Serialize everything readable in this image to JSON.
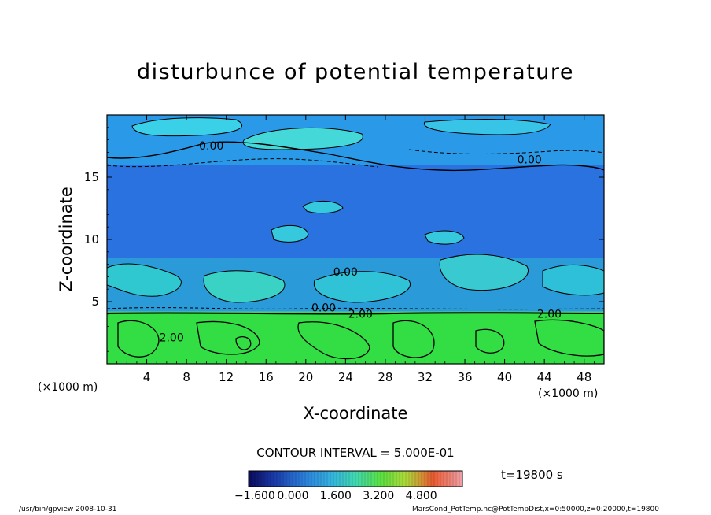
{
  "chart_data": {
    "type": "heatmap",
    "title": "disturbunce of potential temperature",
    "xlabel": "X-coordinate",
    "ylabel": "Z-coordinate",
    "x_unit": "(×1000 m)",
    "y_unit": "(×1000 m)",
    "xlim": [
      0,
      50
    ],
    "ylim": [
      0,
      20
    ],
    "x_ticks": [
      4,
      8,
      12,
      16,
      20,
      24,
      28,
      32,
      36,
      40,
      44,
      48
    ],
    "y_ticks": [
      5,
      10,
      15
    ],
    "contour_labels": [
      {
        "text": "0.00",
        "x": 10.5,
        "z": 17.2
      },
      {
        "text": "0.00",
        "x": 42.5,
        "z": 16.1
      },
      {
        "text": "0.00",
        "x": 24.0,
        "z": 7.1
      },
      {
        "text": "0.00",
        "x": 21.8,
        "z": 4.2
      },
      {
        "text": "2.00",
        "x": 6.5,
        "z": 1.8
      },
      {
        "text": "2.00",
        "x": 25.5,
        "z": 3.7
      },
      {
        "text": "2.00",
        "x": 44.5,
        "z": 3.7
      }
    ],
    "contour_interval_text": "CONTOUR INTERVAL = 5.000E-01",
    "colorbar": {
      "min": -1.6,
      "max": 6.4,
      "tick_labels": [
        "−1.600",
        "0.000",
        "1.600",
        "3.200",
        "4.800"
      ],
      "colors": [
        "#0a0a5a",
        "#1a3aa8",
        "#2a7ad8",
        "#33b0e0",
        "#40d8b0",
        "#5ae040",
        "#b0d838",
        "#e8a030",
        "#e85a30",
        "#f0a0a8"
      ]
    },
    "regions": [
      {
        "z_range": [
          0,
          4.2
        ],
        "value": 2.0,
        "color": "#33dd44"
      },
      {
        "z_range": [
          4.2,
          8.5
        ],
        "value": 0.3,
        "color": "#2a9ad8"
      },
      {
        "z_range": [
          8.5,
          16
        ],
        "value": -0.2,
        "color": "#2a72e0"
      },
      {
        "z_range": [
          16,
          20
        ],
        "value": 0.2,
        "color": "#2a9ae8"
      }
    ]
  },
  "annotations": {
    "time": "t=19800 s",
    "footer_left": "/usr/bin/gpview   2008-10-31",
    "footer_right": "MarsCond_PotTemp.nc@PotTempDist,x=0:50000,z=0:20000,t=19800"
  }
}
